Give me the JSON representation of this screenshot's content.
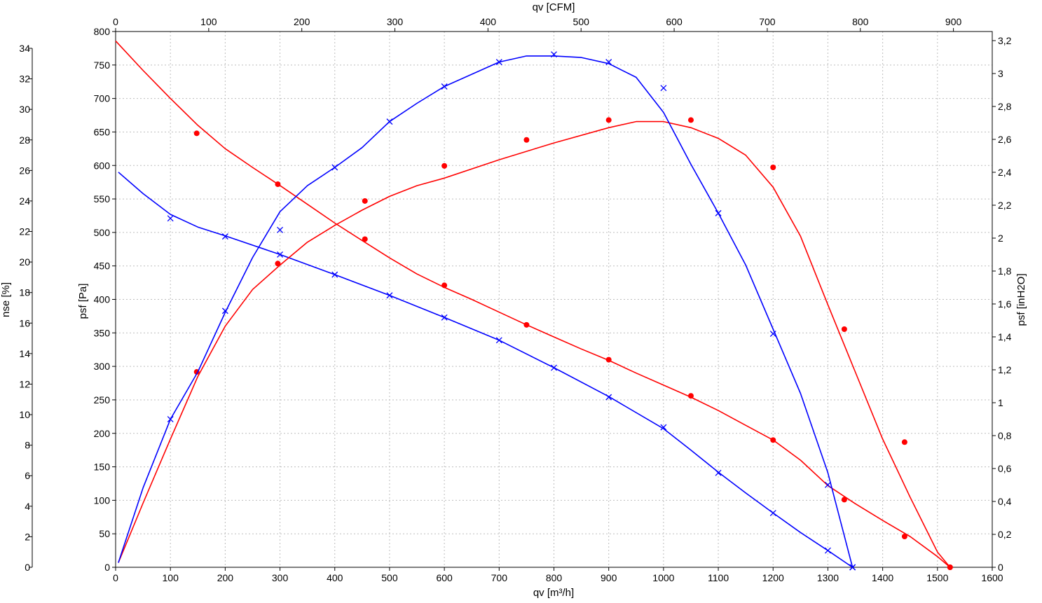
{
  "chart_data": {
    "type": "line",
    "grid": true,
    "axes": {
      "bottom": {
        "label": "qv [m³/h]",
        "range": [
          0,
          1600
        ],
        "ticks": [
          0,
          100,
          200,
          300,
          400,
          500,
          600,
          700,
          800,
          900,
          1000,
          1100,
          1200,
          1300,
          1400,
          1500,
          1600
        ]
      },
      "top": {
        "label": "qv [CFM]",
        "range": [
          0,
          941.7
        ],
        "ticks": [
          0,
          100,
          200,
          300,
          400,
          500,
          600,
          700,
          800,
          900
        ]
      },
      "left_inner": {
        "label": "psf [Pa]",
        "range": [
          0,
          800
        ],
        "ticks": [
          0,
          50,
          100,
          150,
          200,
          250,
          300,
          350,
          400,
          450,
          500,
          550,
          600,
          650,
          700,
          750,
          800
        ]
      },
      "left_outer": {
        "label": "nse [%]",
        "range": [
          0,
          34
        ],
        "ticks": [
          0,
          2,
          4,
          6,
          8,
          10,
          12,
          14,
          16,
          18,
          20,
          22,
          24,
          26,
          28,
          30,
          32,
          34
        ]
      },
      "right": {
        "label": "psf [inH2O]",
        "range": [
          0,
          3.21
        ],
        "ticks": [
          "0",
          "0,2",
          "0,4",
          "0,6",
          "0,8",
          "1",
          "1,2",
          "1,4",
          "1,6",
          "1,8",
          "2",
          "2,2",
          "2,4",
          "2,6",
          "2,8",
          "3",
          "3,2"
        ]
      }
    },
    "series": [
      {
        "kind": "pressure",
        "color": "#ff0000",
        "marker": "dot",
        "y_axis": "psf_pa",
        "line": [
          [
            0,
            786
          ],
          [
            50,
            742
          ],
          [
            100,
            700
          ],
          [
            150,
            660
          ],
          [
            200,
            625
          ],
          [
            250,
            597
          ],
          [
            300,
            570
          ],
          [
            350,
            542
          ],
          [
            400,
            514
          ],
          [
            450,
            488
          ],
          [
            500,
            462
          ],
          [
            550,
            438
          ],
          [
            600,
            418
          ],
          [
            650,
            400
          ],
          [
            700,
            381
          ],
          [
            750,
            362
          ],
          [
            800,
            344
          ],
          [
            850,
            326
          ],
          [
            900,
            309
          ],
          [
            950,
            290
          ],
          [
            1000,
            272
          ],
          [
            1050,
            254
          ],
          [
            1100,
            234
          ],
          [
            1150,
            212
          ],
          [
            1200,
            190
          ],
          [
            1250,
            160
          ],
          [
            1300,
            122
          ],
          [
            1350,
            95
          ],
          [
            1400,
            70
          ],
          [
            1450,
            46
          ],
          [
            1500,
            16
          ],
          [
            1523,
            0
          ]
        ],
        "points": [
          [
            148,
            648
          ],
          [
            296,
            572
          ],
          [
            455,
            490
          ],
          [
            600,
            421
          ],
          [
            750,
            362
          ],
          [
            900,
            310
          ],
          [
            1050,
            256
          ],
          [
            1200,
            190
          ],
          [
            1330,
            101
          ],
          [
            1440,
            46
          ],
          [
            1523,
            0
          ]
        ]
      },
      {
        "kind": "pressure",
        "color": "#0000ff",
        "marker": "x",
        "y_axis": "psf_pa",
        "line": [
          [
            5,
            590
          ],
          [
            50,
            558
          ],
          [
            100,
            527
          ],
          [
            150,
            508
          ],
          [
            200,
            495
          ],
          [
            300,
            467
          ],
          [
            400,
            437
          ],
          [
            500,
            406
          ],
          [
            600,
            373
          ],
          [
            700,
            339
          ],
          [
            800,
            298
          ],
          [
            900,
            255
          ],
          [
            1000,
            207
          ],
          [
            1050,
            175
          ],
          [
            1100,
            142
          ],
          [
            1150,
            111
          ],
          [
            1200,
            81
          ],
          [
            1250,
            52
          ],
          [
            1300,
            25
          ],
          [
            1345,
            0
          ]
        ],
        "points": [
          [
            100,
            521
          ],
          [
            200,
            494
          ],
          [
            300,
            467
          ],
          [
            400,
            437
          ],
          [
            500,
            406
          ],
          [
            600,
            373
          ],
          [
            700,
            339
          ],
          [
            800,
            298
          ],
          [
            900,
            254
          ],
          [
            1000,
            209
          ],
          [
            1100,
            141
          ],
          [
            1200,
            81
          ],
          [
            1300,
            25
          ],
          [
            1345,
            0
          ]
        ]
      },
      {
        "kind": "efficiency",
        "color": "#ff0000",
        "marker": "dot",
        "y_axis": "nse_pct",
        "line": [
          [
            5,
            0.3
          ],
          [
            50,
            4.2
          ],
          [
            100,
            8.4
          ],
          [
            150,
            12.5
          ],
          [
            200,
            15.8
          ],
          [
            250,
            18.2
          ],
          [
            300,
            19.8
          ],
          [
            350,
            21.3
          ],
          [
            400,
            22.4
          ],
          [
            450,
            23.4
          ],
          [
            500,
            24.3
          ],
          [
            550,
            25.0
          ],
          [
            600,
            25.5
          ],
          [
            700,
            26.7
          ],
          [
            800,
            27.8
          ],
          [
            900,
            28.8
          ],
          [
            950,
            29.2
          ],
          [
            1000,
            29.2
          ],
          [
            1050,
            28.8
          ],
          [
            1100,
            28.1
          ],
          [
            1150,
            27.0
          ],
          [
            1200,
            24.9
          ],
          [
            1250,
            21.7
          ],
          [
            1300,
            17.2
          ],
          [
            1350,
            12.8
          ],
          [
            1400,
            8.4
          ],
          [
            1450,
            4.6
          ],
          [
            1500,
            1.0
          ],
          [
            1523,
            0
          ]
        ],
        "points": [
          [
            148,
            12.8
          ],
          [
            296,
            19.9
          ],
          [
            455,
            24.0
          ],
          [
            600,
            26.3
          ],
          [
            750,
            28.0
          ],
          [
            900,
            29.3
          ],
          [
            1050,
            29.3
          ],
          [
            1200,
            26.2
          ],
          [
            1330,
            15.6
          ],
          [
            1440,
            8.2
          ],
          [
            1523,
            0
          ]
        ]
      },
      {
        "kind": "efficiency",
        "color": "#0000ff",
        "marker": "x",
        "y_axis": "nse_pct",
        "line": [
          [
            5,
            0.3
          ],
          [
            50,
            5.2
          ],
          [
            100,
            9.7
          ],
          [
            150,
            12.8
          ],
          [
            200,
            16.7
          ],
          [
            250,
            20.3
          ],
          [
            300,
            23.3
          ],
          [
            350,
            25.0
          ],
          [
            400,
            26.2
          ],
          [
            450,
            27.5
          ],
          [
            500,
            29.2
          ],
          [
            550,
            30.4
          ],
          [
            600,
            31.5
          ],
          [
            700,
            33.1
          ],
          [
            750,
            33.5
          ],
          [
            800,
            33.5
          ],
          [
            850,
            33.4
          ],
          [
            900,
            33.0
          ],
          [
            950,
            32.1
          ],
          [
            1000,
            29.8
          ],
          [
            1050,
            26.4
          ],
          [
            1100,
            23.2
          ],
          [
            1150,
            19.8
          ],
          [
            1200,
            15.6
          ],
          [
            1250,
            11.4
          ],
          [
            1300,
            6.2
          ],
          [
            1345,
            0
          ]
        ],
        "points": [
          [
            100,
            9.7
          ],
          [
            200,
            16.8
          ],
          [
            300,
            22.1
          ],
          [
            400,
            26.2
          ],
          [
            500,
            29.2
          ],
          [
            600,
            31.5
          ],
          [
            700,
            33.1
          ],
          [
            800,
            33.6
          ],
          [
            900,
            33.1
          ],
          [
            1000,
            31.4
          ],
          [
            1100,
            23.2
          ],
          [
            1200,
            15.3
          ],
          [
            1300,
            5.4
          ],
          [
            1345,
            0
          ]
        ]
      }
    ]
  }
}
